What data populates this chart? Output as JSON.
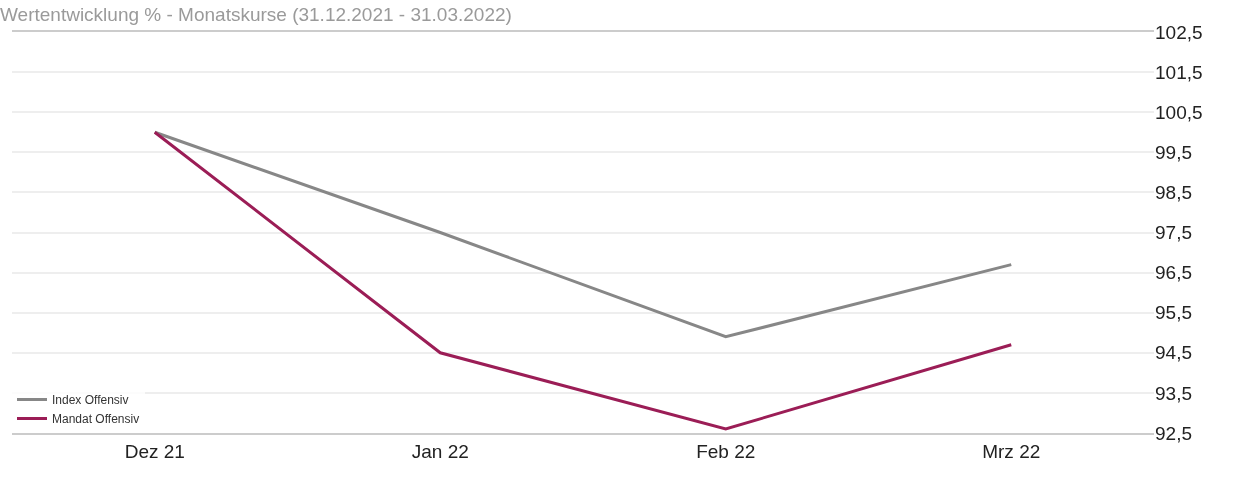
{
  "chart_data": {
    "type": "line",
    "title": "Wertentwicklung % - Monatskurse (31.12.2021 - 31.03.2022)",
    "categories": [
      "Dez 21",
      "Jan 22",
      "Feb 22",
      "Mrz 22"
    ],
    "series": [
      {
        "name": "Index Offensiv",
        "color": "#878787",
        "values": [
          100.0,
          97.5,
          94.9,
          96.7
        ]
      },
      {
        "name": "Mandat Offensiv",
        "color": "#9b1d56",
        "values": [
          100.0,
          94.5,
          92.6,
          94.7
        ]
      }
    ],
    "ylim": [
      92.5,
      102.5
    ],
    "yticks": [
      {
        "value": 92.5,
        "label": "92,5"
      },
      {
        "value": 93.5,
        "label": "93,5"
      },
      {
        "value": 94.5,
        "label": "94,5"
      },
      {
        "value": 95.5,
        "label": "95,5"
      },
      {
        "value": 96.5,
        "label": "96,5"
      },
      {
        "value": 97.5,
        "label": "97,5"
      },
      {
        "value": 98.5,
        "label": "98,5"
      },
      {
        "value": 99.5,
        "label": "99,5"
      },
      {
        "value": 100.5,
        "label": "100,5"
      },
      {
        "value": 101.5,
        "label": "101,5"
      },
      {
        "value": 102.5,
        "label": "102,5"
      }
    ],
    "grid": "y",
    "legend": "bottom left",
    "marker": "none",
    "line_style": "solid"
  }
}
